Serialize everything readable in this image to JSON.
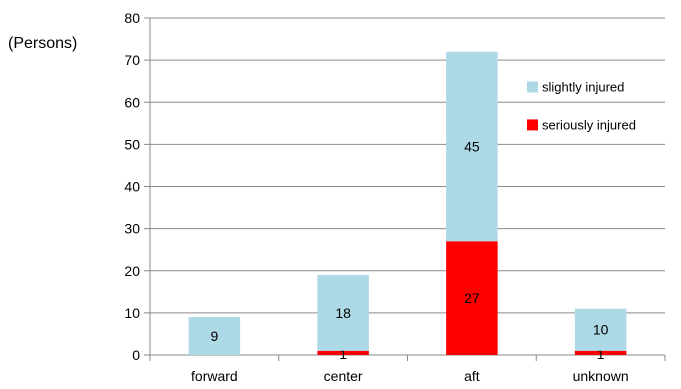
{
  "chart_data": {
    "type": "bar",
    "stacked": true,
    "categories": [
      "forward",
      "center",
      "aft",
      "unknown"
    ],
    "series": [
      {
        "name": "seriously injured",
        "color": "#ff0000",
        "values": [
          0,
          1,
          27,
          1
        ],
        "labels": [
          "",
          "1",
          "27",
          "1"
        ]
      },
      {
        "name": "slightly injured",
        "color": "#add8e6",
        "values": [
          9,
          18,
          45,
          10
        ],
        "labels": [
          "9",
          "18",
          "45",
          "10"
        ]
      }
    ],
    "ylabel": "(Persons)",
    "ylim": [
      0,
      80
    ],
    "yticks": [
      0,
      10,
      20,
      30,
      40,
      50,
      60,
      70,
      80
    ],
    "grid": true,
    "legend_position": "right, inside plot area",
    "legend_order": [
      "slightly injured",
      "seriously injured"
    ]
  }
}
